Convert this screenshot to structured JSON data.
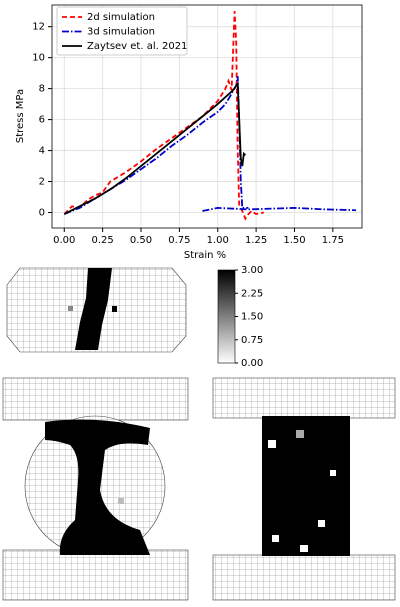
{
  "chart_data": {
    "type": "line",
    "xlabel": "Strain %",
    "ylabel": "Stress MPa",
    "xlim": [
      -0.08,
      1.94
    ],
    "ylim": [
      -1,
      13.4
    ],
    "xticks": [
      {
        "value": 0,
        "label": "0.00"
      },
      {
        "value": 0.25,
        "label": "0.25"
      },
      {
        "value": 0.5,
        "label": "0.50"
      },
      {
        "value": 0.75,
        "label": "0.75"
      },
      {
        "value": 1,
        "label": "1.00"
      },
      {
        "value": 1.25,
        "label": "1.25"
      },
      {
        "value": 1.5,
        "label": "1.50"
      },
      {
        "value": 1.75,
        "label": "1.75"
      }
    ],
    "yticks": [
      0,
      2,
      4,
      6,
      8,
      10,
      12
    ],
    "grid": true,
    "legend": "upper left",
    "series": [
      {
        "name": "2d simulation",
        "color": "#ff0000",
        "linestyle": "dashed",
        "x": [
          0,
          0.05,
          0.1,
          0.15,
          0.2,
          0.25,
          0.3,
          0.4,
          0.5,
          0.6,
          0.7,
          0.8,
          0.9,
          1.0,
          1.05,
          1.07,
          1.09,
          1.11,
          1.12,
          1.13,
          1.14,
          1.16,
          1.18,
          1.2,
          1.22,
          1.25,
          1.3
        ],
        "values": [
          -0.1,
          0.4,
          0.3,
          0.8,
          1.1,
          1.3,
          2.0,
          2.6,
          3.3,
          4.1,
          4.8,
          5.5,
          6.2,
          7.2,
          8.0,
          8.5,
          7.9,
          13.0,
          11,
          4,
          0.5,
          0.1,
          -0.4,
          -0.1,
          0.1,
          -0.1,
          0
        ]
      },
      {
        "name": "3d simulation",
        "color": "#0000cc",
        "linestyle": "dashdot",
        "x": [
          0,
          0.1,
          0.2,
          0.3,
          0.4,
          0.5,
          0.6,
          0.7,
          0.8,
          0.9,
          1.0,
          1.05,
          1.08,
          1.12,
          1.13,
          1.14,
          1.15,
          1.16,
          1.2,
          1.25,
          0.9,
          1.0,
          1.2,
          1.5,
          1.7,
          1.9
        ],
        "values": [
          -0.1,
          0.3,
          0.9,
          1.5,
          2.1,
          2.8,
          3.5,
          4.3,
          5.0,
          5.8,
          6.5,
          7.0,
          7.5,
          8.2,
          8.8,
          6,
          2,
          0.3,
          0.3,
          null,
          0.1,
          0.3,
          0.2,
          0.3,
          0.2,
          0.15
        ]
      },
      {
        "name": "Zaytsev et. al. 2021",
        "color": "#000000",
        "linestyle": "solid",
        "x": [
          0,
          0.1,
          0.2,
          0.3,
          0.4,
          0.5,
          0.6,
          0.7,
          0.8,
          0.9,
          1.0,
          1.1,
          1.13,
          1.14,
          1.15,
          1.16,
          1.17,
          1.18
        ],
        "values": [
          -0.1,
          0.4,
          0.9,
          1.5,
          2.2,
          3.0,
          3.8,
          4.6,
          5.4,
          6.2,
          7.0,
          7.9,
          8.3,
          6,
          3.5,
          3,
          3.8,
          3.7
        ]
      }
    ]
  },
  "colorbar": {
    "lim": [
      0,
      3
    ],
    "ticks": [
      {
        "value": 0,
        "label": "0.00"
      },
      {
        "value": 0.75,
        "label": "0.75"
      },
      {
        "value": 1.5,
        "label": "1.50"
      },
      {
        "value": 2.25,
        "label": "2.25"
      },
      {
        "value": 3,
        "label": "3.00"
      }
    ]
  }
}
